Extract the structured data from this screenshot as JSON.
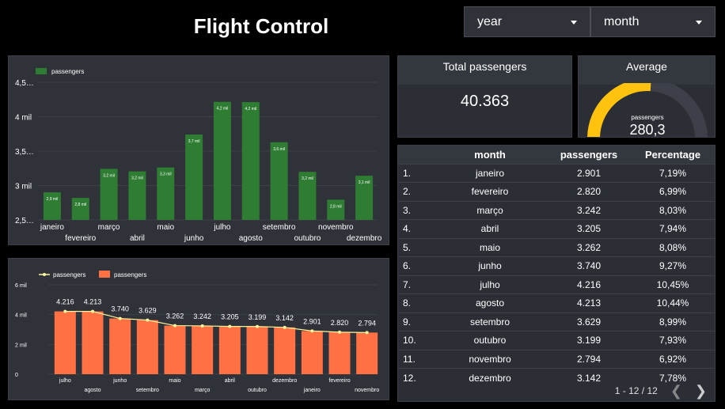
{
  "header": {
    "title": "Flight Control"
  },
  "filters": {
    "year_label": "year",
    "month_label": "month"
  },
  "kpi_total": {
    "title": "Total passengers",
    "value": "40.363"
  },
  "kpi_average": {
    "title": "Average",
    "metric": "passengers",
    "value": "280,3",
    "fraction": 0.52,
    "color": "#ffc20e"
  },
  "bar_chart": {
    "legend": "passengers",
    "y_ticks": [
      "4,5…",
      "4 mil",
      "3,5…",
      "3 mil",
      "2,5…"
    ],
    "color": "#2e7d32"
  },
  "combo_chart": {
    "legend_line": "passengers",
    "legend_bar": "passengers",
    "y_ticks": [
      "6 mil",
      "4 mil",
      "2 mil",
      "0"
    ],
    "bar_color": "#ff7043",
    "line_color": "#fff59d"
  },
  "chart_data": [
    {
      "type": "bar",
      "categories": [
        "janeiro",
        "fevereiro",
        "março",
        "abril",
        "maio",
        "junho",
        "julho",
        "agosto",
        "setembro",
        "outubro",
        "novembro",
        "dezembro"
      ],
      "series": [
        {
          "name": "passengers",
          "values": [
            2901,
            2820,
            3242,
            3205,
            3262,
            3740,
            4216,
            4213,
            3629,
            3199,
            2794,
            3142
          ]
        }
      ],
      "data_labels": [
        "2,9 mil",
        "2,8 mil",
        "3,2 mil",
        "3,2 mil",
        "3,3 mil",
        "3,7 mil",
        "4,2 mil",
        "4,2 mil",
        "3,6 mil",
        "3,2 mil",
        "2,8 mil",
        "3,1 mil"
      ],
      "ylim": [
        2500,
        4500
      ],
      "legend": "top-left"
    },
    {
      "type": "bar",
      "categories": [
        "julho",
        "agosto",
        "junho",
        "setembro",
        "maio",
        "março",
        "abril",
        "outubro",
        "dezembro",
        "janeiro",
        "fevereiro",
        "novembro"
      ],
      "series": [
        {
          "name": "passengers",
          "values": [
            4216,
            4213,
            3740,
            3629,
            3262,
            3242,
            3205,
            3199,
            3142,
            2901,
            2820,
            2794
          ]
        },
        {
          "name": "passengers",
          "values": [
            4216,
            4213,
            3740,
            3629,
            3262,
            3242,
            3205,
            3199,
            3142,
            2901,
            2820,
            2794
          ]
        }
      ],
      "data_labels": [
        "4.216",
        "4.213",
        "3.740",
        "3.629",
        "3.262",
        "3.242",
        "3.205",
        "3.199",
        "3.142",
        "2.901",
        "2.820",
        "2.794"
      ],
      "ylim": [
        0,
        6000
      ],
      "legend": "top-left"
    }
  ],
  "table": {
    "columns": [
      "month",
      "passengers",
      "Percentage"
    ],
    "rows": [
      {
        "idx": "1.",
        "month": "janeiro",
        "passengers": "2.901",
        "pct": "7,19%"
      },
      {
        "idx": "2.",
        "month": "fevereiro",
        "passengers": "2.820",
        "pct": "6,99%"
      },
      {
        "idx": "3.",
        "month": "março",
        "passengers": "3.242",
        "pct": "8,03%"
      },
      {
        "idx": "4.",
        "month": "abril",
        "passengers": "3.205",
        "pct": "7,94%"
      },
      {
        "idx": "5.",
        "month": "maio",
        "passengers": "3.262",
        "pct": "8,08%"
      },
      {
        "idx": "6.",
        "month": "junho",
        "passengers": "3.740",
        "pct": "9,27%"
      },
      {
        "idx": "7.",
        "month": "julho",
        "passengers": "4.216",
        "pct": "10,45%"
      },
      {
        "idx": "8.",
        "month": "agosto",
        "passengers": "4.213",
        "pct": "10,44%"
      },
      {
        "idx": "9.",
        "month": "setembro",
        "passengers": "3.629",
        "pct": "8,99%"
      },
      {
        "idx": "10.",
        "month": "outubro",
        "passengers": "3.199",
        "pct": "7,93%"
      },
      {
        "idx": "11.",
        "month": "novembro",
        "passengers": "2.794",
        "pct": "6,92%"
      },
      {
        "idx": "12.",
        "month": "dezembro",
        "passengers": "3.142",
        "pct": "7,78%"
      }
    ],
    "pager": "1 - 12 / 12",
    "prev_icon": "chevron-left-icon",
    "next_icon": "chevron-right-icon"
  }
}
